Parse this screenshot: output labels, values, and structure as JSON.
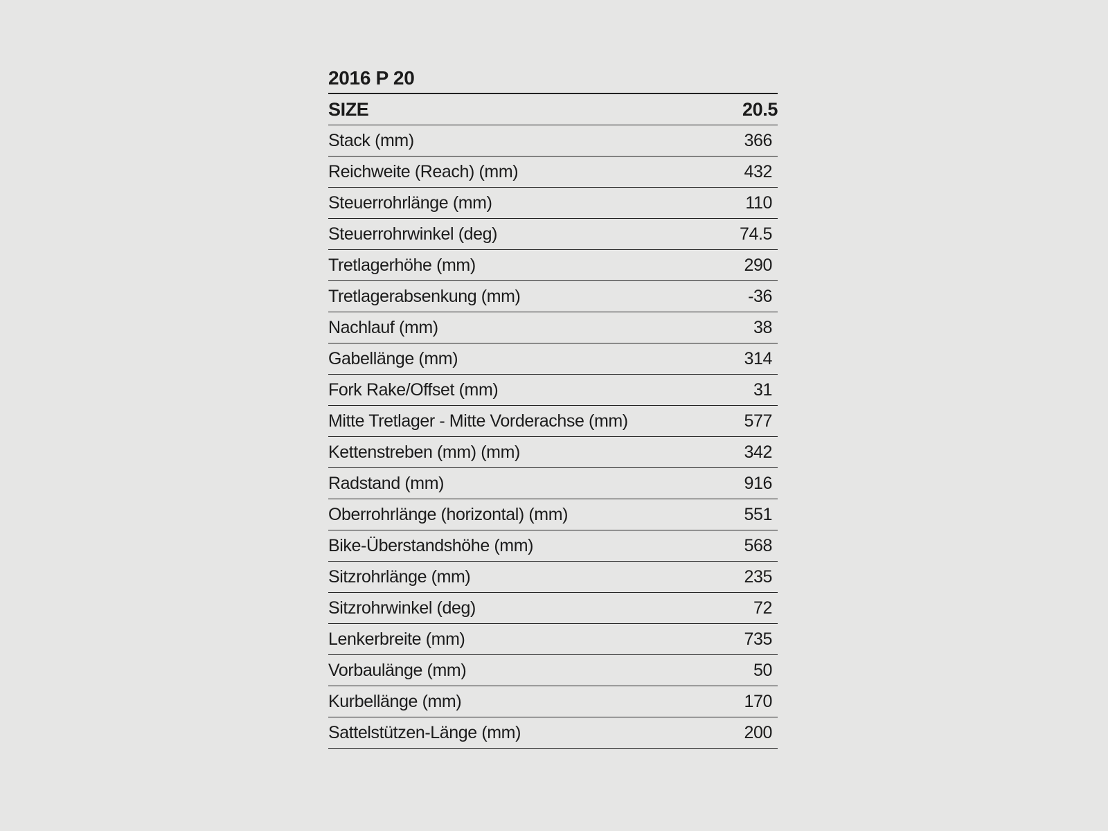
{
  "title": "2016 P 20",
  "header": {
    "label": "SIZE",
    "value": "20.5"
  },
  "rows": [
    {
      "label": "Stack (mm)",
      "value": "366"
    },
    {
      "label": "Reichweite (Reach) (mm)",
      "value": "432"
    },
    {
      "label": "Steuerrohrlänge (mm)",
      "value": "110"
    },
    {
      "label": "Steuerrohrwinkel (deg)",
      "value": "74.5"
    },
    {
      "label": "Tretlagerhöhe (mm)",
      "value": "290"
    },
    {
      "label": "Tretlagerabsenkung (mm)",
      "value": "-36"
    },
    {
      "label": "Nachlauf (mm)",
      "value": "38"
    },
    {
      "label": "Gabellänge (mm)",
      "value": "314"
    },
    {
      "label": "Fork Rake/Offset (mm)",
      "value": "31"
    },
    {
      "label": "Mitte Tretlager - Mitte Vorderachse (mm)",
      "value": "577"
    },
    {
      "label": "Kettenstreben (mm) (mm)",
      "value": "342"
    },
    {
      "label": "Radstand (mm)",
      "value": "916"
    },
    {
      "label": "Oberrohrlänge (horizontal) (mm)",
      "value": "551"
    },
    {
      "label": "Bike-Überstandshöhe (mm)",
      "value": "568"
    },
    {
      "label": "Sitzrohrlänge (mm)",
      "value": "235"
    },
    {
      "label": "Sitzrohrwinkel (deg)",
      "value": "72"
    },
    {
      "label": "Lenkerbreite (mm)",
      "value": "735"
    },
    {
      "label": "Vorbaulänge (mm)",
      "value": "50"
    },
    {
      "label": "Kurbellänge (mm)",
      "value": "170"
    },
    {
      "label": "Sattelstützen-Länge (mm)",
      "value": "200"
    }
  ]
}
